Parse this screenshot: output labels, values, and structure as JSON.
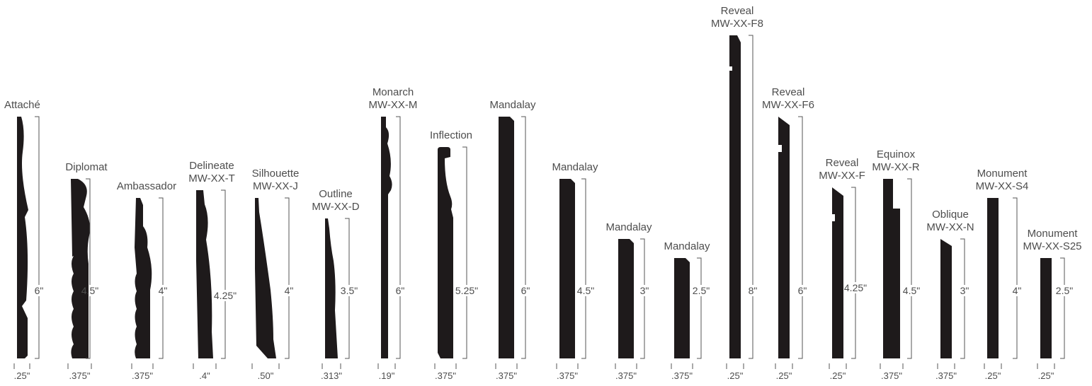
{
  "colors": {
    "profile": "#1e1a1b",
    "label": "#4d4d4d",
    "dimension": "#555555"
  },
  "profiles": [
    {
      "id": "attache",
      "name": "Attaché",
      "model": "",
      "height": "6\"",
      "thickness": ".25\""
    },
    {
      "id": "diplomat",
      "name": "Diplomat",
      "model": "",
      "height": "4.5\"",
      "thickness": ".375\""
    },
    {
      "id": "ambassador",
      "name": "Ambassador",
      "model": "",
      "height": "4\"",
      "thickness": ".375\""
    },
    {
      "id": "delineate",
      "name": "Delineate",
      "model": "MW-XX-T",
      "height": "4.25\"",
      "thickness": ".4\""
    },
    {
      "id": "silhouette",
      "name": "Silhouette",
      "model": "MW-XX-J",
      "height": "4\"",
      "thickness": ".50\""
    },
    {
      "id": "outline",
      "name": "Outline",
      "model": "MW-XX-D",
      "height": "3.5\"",
      "thickness": ".313\""
    },
    {
      "id": "monarch",
      "name": "Monarch",
      "model": "MW-XX-M",
      "height": "6\"",
      "thickness": ".19\""
    },
    {
      "id": "inflection",
      "name": "Inflection",
      "model": "",
      "height": "5.25\"",
      "thickness": ".375\""
    },
    {
      "id": "mandalay-6",
      "name": "Mandalay",
      "model": "",
      "height": "6\"",
      "thickness": ".375\""
    },
    {
      "id": "mandalay-45",
      "name": "Mandalay",
      "model": "",
      "height": "4.5\"",
      "thickness": ".375\""
    },
    {
      "id": "mandalay-3",
      "name": "Mandalay",
      "model": "",
      "height": "3\"",
      "thickness": ".375\""
    },
    {
      "id": "mandalay-25",
      "name": "Mandalay",
      "model": "",
      "height": "2.5\"",
      "thickness": ".375\""
    },
    {
      "id": "reveal-f8",
      "name": "Reveal",
      "model": "MW-XX-F8",
      "height": "8\"",
      "thickness": ".25\""
    },
    {
      "id": "reveal-f6",
      "name": "Reveal",
      "model": "MW-XX-F6",
      "height": "6\"",
      "thickness": ".25\""
    },
    {
      "id": "reveal-f",
      "name": "Reveal",
      "model": "MW-XX-F",
      "height": "4.25\"",
      "thickness": ".25\""
    },
    {
      "id": "equinox",
      "name": "Equinox",
      "model": "MW-XX-R",
      "height": "4.5\"",
      "thickness": ".375\""
    },
    {
      "id": "oblique",
      "name": "Oblique",
      "model": "MW-XX-N",
      "height": "3\"",
      "thickness": ".375\""
    },
    {
      "id": "monument-s4",
      "name": "Monument",
      "model": "MW-XX-S4",
      "height": "4\"",
      "thickness": ".25\""
    },
    {
      "id": "monument-s25",
      "name": "Monument",
      "model": "MW-XX-S25",
      "height": "2.5\"",
      "thickness": ".25\""
    }
  ]
}
